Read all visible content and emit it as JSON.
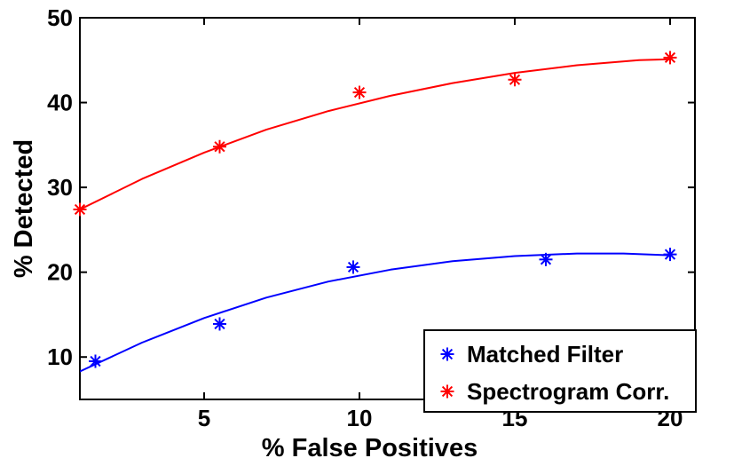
{
  "chart_data": {
    "type": "scatter",
    "title": "",
    "xlabel": "% False Positives",
    "ylabel": "% Detected",
    "xlim": [
      1,
      20.8
    ],
    "ylim": [
      5,
      50
    ],
    "xticks": [
      5,
      10,
      15,
      20
    ],
    "yticks": [
      10,
      20,
      30,
      40,
      50
    ],
    "grid": false,
    "legend_position": "bottom-right",
    "series": [
      {
        "name": "Matched Filter",
        "color": "#0000ff",
        "marker": "asterisk",
        "x": [
          1.5,
          5.5,
          9.8,
          16.0,
          20.0
        ],
        "y": [
          9.5,
          13.9,
          20.6,
          21.5,
          22.1
        ],
        "fit_curve": {
          "x": [
            1.0,
            3.0,
            5.0,
            7.0,
            9.0,
            11.0,
            13.0,
            15.0,
            17.0,
            18.5,
            20.0
          ],
          "y": [
            8.3,
            11.7,
            14.6,
            17.0,
            18.9,
            20.3,
            21.3,
            21.9,
            22.2,
            22.2,
            22.0
          ]
        }
      },
      {
        "name": "Spectrogram Corr.",
        "color": "#ff0000",
        "marker": "asterisk",
        "x": [
          1.0,
          5.5,
          10.0,
          15.0,
          20.0
        ],
        "y": [
          27.4,
          34.8,
          41.2,
          42.7,
          45.3
        ],
        "fit_curve": {
          "x": [
            1.0,
            3.0,
            5.0,
            7.0,
            9.0,
            11.0,
            13.0,
            15.0,
            17.0,
            19.0,
            20.0
          ],
          "y": [
            27.4,
            31.0,
            34.1,
            36.8,
            39.0,
            40.8,
            42.3,
            43.5,
            44.4,
            45.0,
            45.1
          ]
        }
      }
    ]
  }
}
